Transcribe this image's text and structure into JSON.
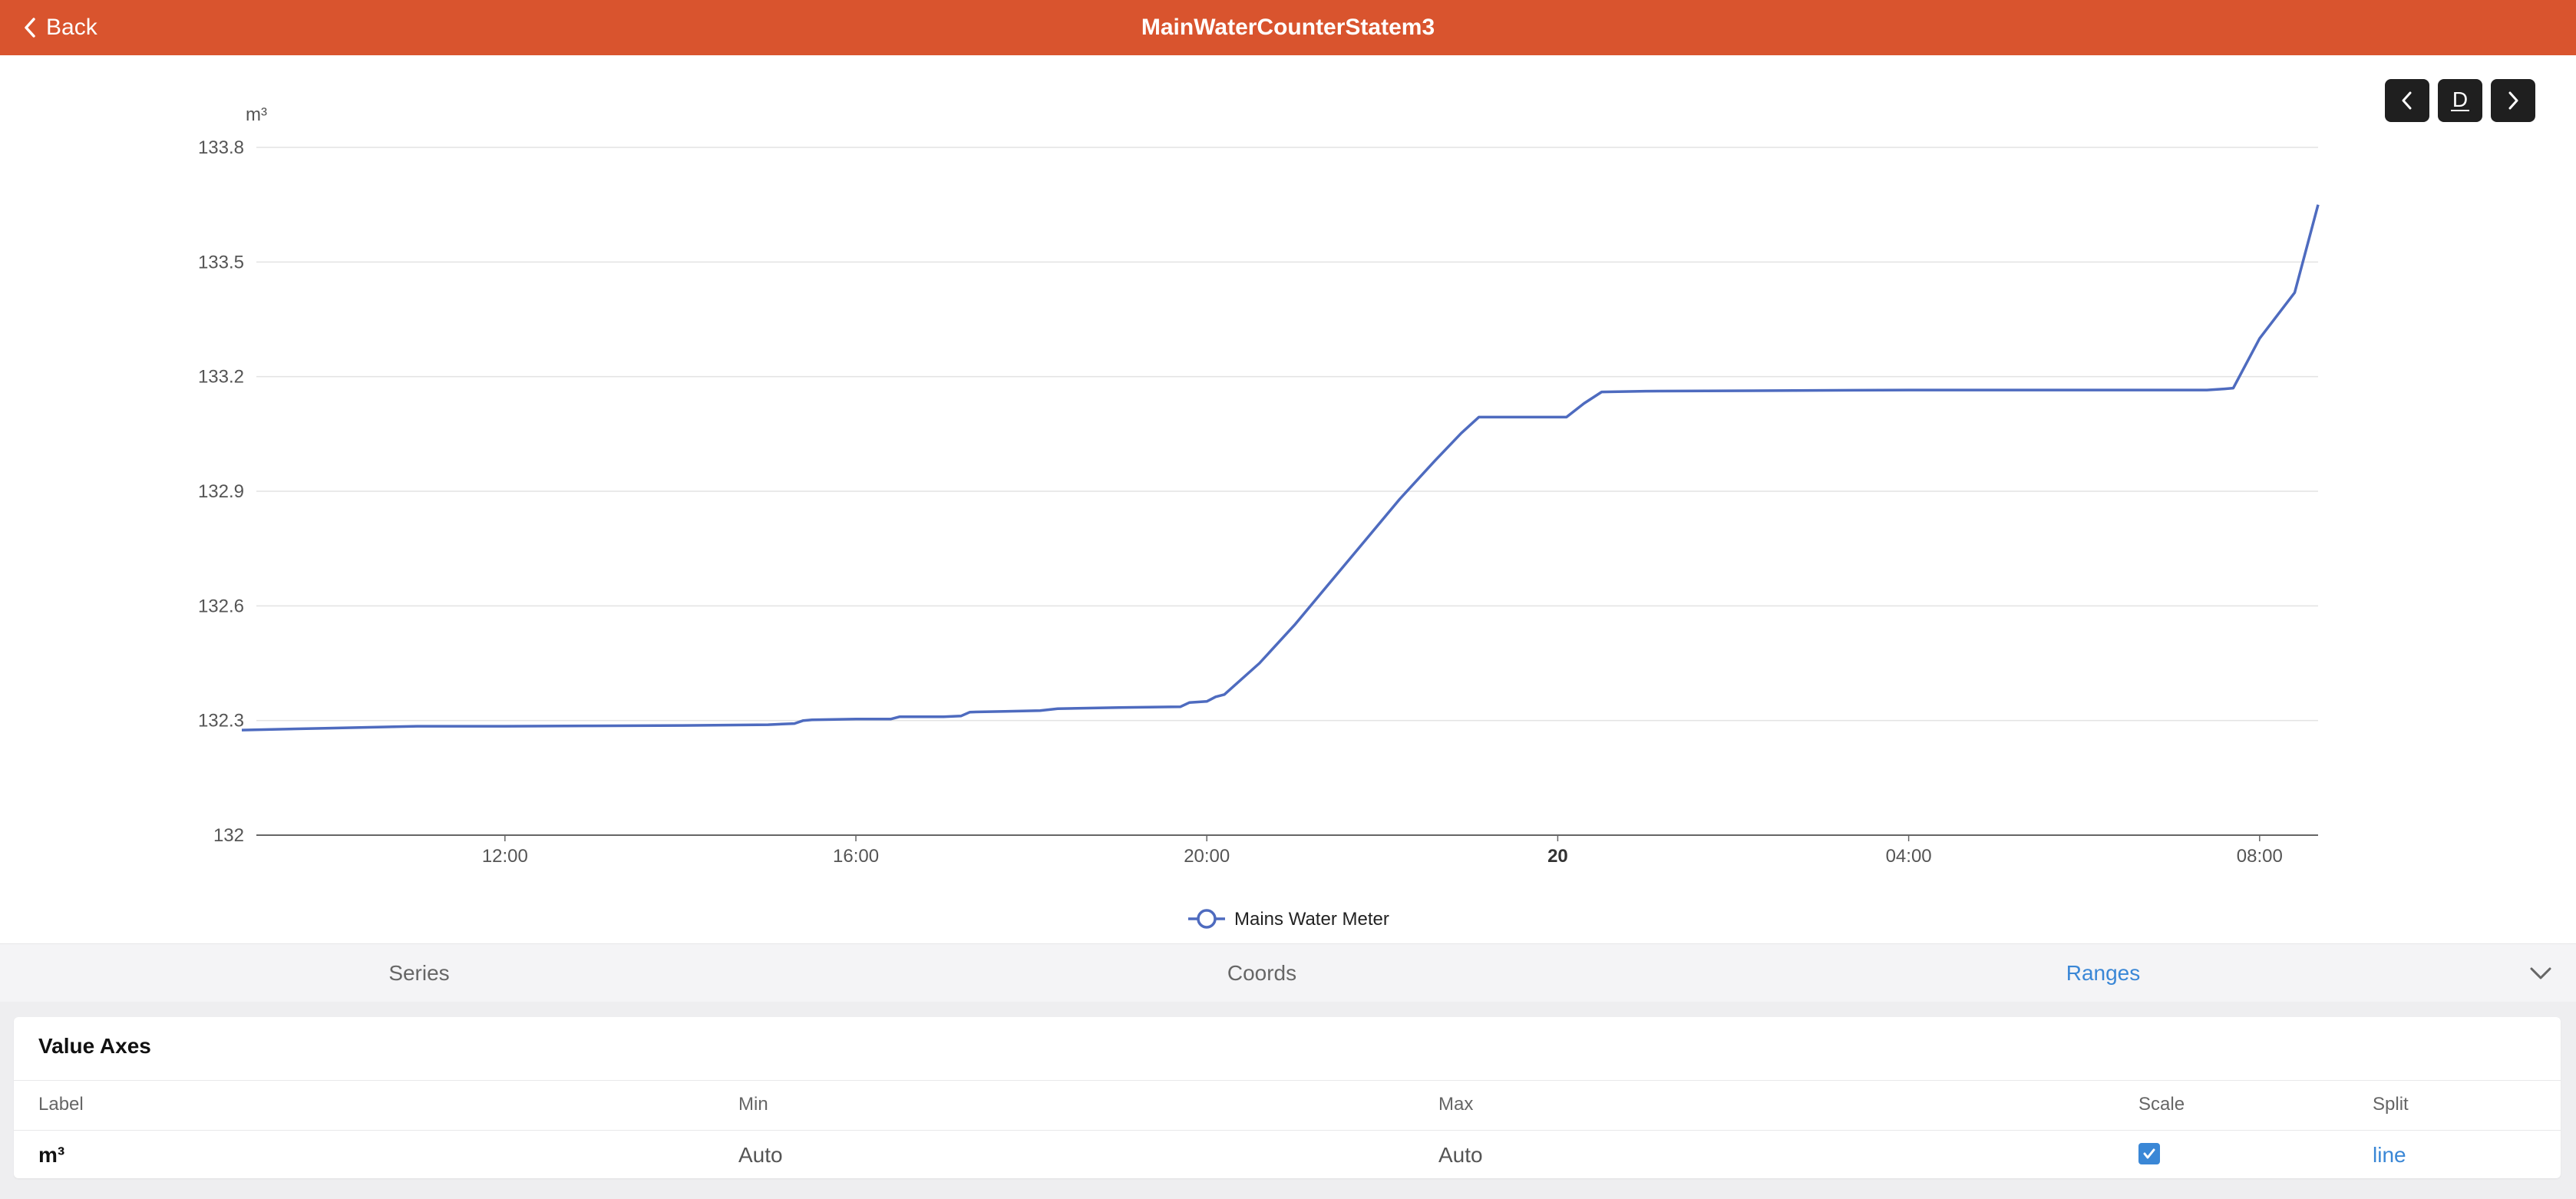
{
  "header": {
    "back_label": "Back",
    "title": "MainWaterCounterStatem3"
  },
  "period": {
    "prev_icon": "chevron-left-icon",
    "current": "D",
    "next_icon": "chevron-right-icon"
  },
  "colors": {
    "header": "#d9542e",
    "series": "#4e6bbf",
    "accent": "#3a87d6"
  },
  "chart_data": {
    "type": "line",
    "title": "",
    "ylabel": "m³",
    "xlabel": "",
    "ylim": [
      132,
      133.8
    ],
    "yticks": [
      "132",
      "132.3",
      "132.6",
      "132.9",
      "133.2",
      "133.5",
      "133.8"
    ],
    "x_range": [
      "09:10",
      "32:40"
    ],
    "x_ticks": [
      {
        "label": "12:00",
        "t": "12:00",
        "bold": false
      },
      {
        "label": "16:00",
        "t": "16:00",
        "bold": false
      },
      {
        "label": "20:00",
        "t": "20:00",
        "bold": false
      },
      {
        "label": "20",
        "t": "24:00",
        "bold": true
      },
      {
        "label": "04:00",
        "t": "28:00",
        "bold": false
      },
      {
        "label": "08:00",
        "t": "32:00",
        "bold": false
      }
    ],
    "grid": true,
    "legend_position": "bottom-center",
    "series": [
      {
        "name": "Mains Water Meter",
        "points": [
          [
            "09:00",
            132.275
          ],
          [
            "10:00",
            132.28
          ],
          [
            "11:00",
            132.285
          ],
          [
            "12:00",
            132.285
          ],
          [
            "13:00",
            132.286
          ],
          [
            "14:00",
            132.287
          ],
          [
            "15:00",
            132.289
          ],
          [
            "15:18",
            132.292
          ],
          [
            "15:24",
            132.3
          ],
          [
            "15:30",
            132.302
          ],
          [
            "16:00",
            132.304
          ],
          [
            "16:24",
            132.304
          ],
          [
            "16:30",
            132.31
          ],
          [
            "17:00",
            132.31
          ],
          [
            "17:12",
            132.312
          ],
          [
            "17:18",
            132.322
          ],
          [
            "17:42",
            132.324
          ],
          [
            "18:06",
            132.326
          ],
          [
            "18:18",
            132.331
          ],
          [
            "19:00",
            132.334
          ],
          [
            "19:42",
            132.336
          ],
          [
            "19:48",
            132.347
          ],
          [
            "20:00",
            132.35
          ],
          [
            "20:06",
            132.362
          ],
          [
            "20:12",
            132.368
          ],
          [
            "20:36",
            132.45
          ],
          [
            "21:00",
            132.55
          ],
          [
            "21:24",
            132.66
          ],
          [
            "21:48",
            132.77
          ],
          [
            "22:12",
            132.88
          ],
          [
            "22:36",
            132.98
          ],
          [
            "22:54",
            133.052
          ],
          [
            "23:06",
            133.094
          ],
          [
            "24:06",
            133.094
          ],
          [
            "24:18",
            133.13
          ],
          [
            "24:30",
            133.16
          ],
          [
            "25:00",
            133.162
          ],
          [
            "28:00",
            133.165
          ],
          [
            "31:24",
            133.165
          ],
          [
            "31:36",
            133.168
          ],
          [
            "31:42",
            133.17
          ],
          [
            "32:00",
            133.3
          ],
          [
            "32:24",
            133.42
          ],
          [
            "32:40",
            133.65
          ]
        ]
      }
    ]
  },
  "tabs": [
    {
      "label": "Series",
      "active": false
    },
    {
      "label": "Coords",
      "active": false
    },
    {
      "label": "Ranges",
      "active": true
    }
  ],
  "collapse_icon": "chevron-down-icon",
  "panel": {
    "title": "Value Axes",
    "columns": [
      "Label",
      "Min",
      "Max",
      "Scale",
      "Split"
    ],
    "rows": [
      {
        "label": "m³",
        "min": "Auto",
        "max": "Auto",
        "scale": true,
        "split": "line"
      }
    ]
  }
}
